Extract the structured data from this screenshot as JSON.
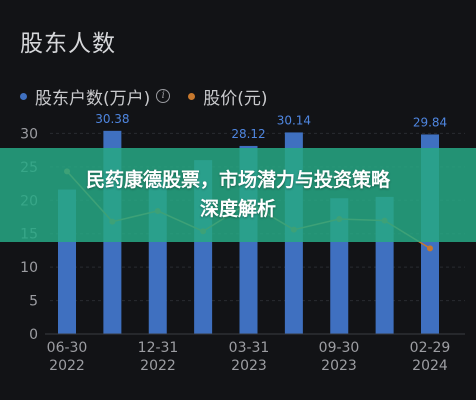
{
  "title": "股东人数",
  "legend": {
    "holders_label": "股东户数(万户)",
    "price_label": "股价(元)",
    "holders_color": "#3f70c0",
    "price_color": "#c7782d"
  },
  "banner": {
    "line1": "民药康德股票，市场潜力与投资策略",
    "line2": "深度解析",
    "color": "#27a883"
  },
  "chart_data": {
    "type": "bar",
    "y_ticks": [
      "0",
      "5",
      "10",
      "15",
      "20",
      "25",
      "30"
    ],
    "ylim": [
      0,
      32
    ],
    "x_ticks": [
      {
        "date": "06-30",
        "year": "2022"
      },
      {
        "date": "12-31",
        "year": "2022"
      },
      {
        "date": "03-31",
        "year": "2023"
      },
      {
        "date": "09-30",
        "year": "2023"
      },
      {
        "date": "02-29",
        "year": "2024"
      }
    ],
    "series": [
      {
        "name": "股东户数(万户)",
        "type": "bar",
        "values": [
          21.6,
          30.38,
          23.5,
          26.0,
          28.12,
          30.14,
          20.3,
          20.5,
          29.84
        ],
        "labels": [
          "",
          "30.38",
          "",
          "",
          "28.12",
          "30.14",
          "",
          "",
          "29.84"
        ]
      },
      {
        "name": "股价(元)",
        "type": "line",
        "values": [
          30.4,
          21.0,
          23.0,
          19.2,
          24.5,
          19.5,
          21.5,
          21.2,
          16.0
        ]
      }
    ]
  }
}
